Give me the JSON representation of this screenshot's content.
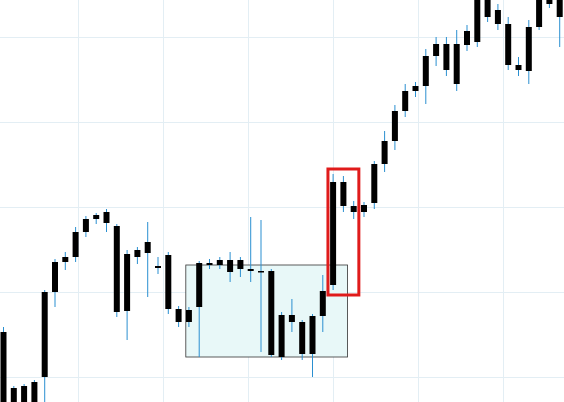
{
  "chart_data": {
    "type": "candlestick",
    "title": "",
    "xlabel": "",
    "ylabel": "",
    "ylim": [
      0,
      402
    ],
    "grid": true,
    "colors": {
      "candle_body": "#000000",
      "wick": "#2a8fd0",
      "grid": "#e3eef4",
      "zone_fill": "#e8f8f8",
      "zone_stroke": "#333333",
      "highlight": "#e01b1b"
    },
    "candles": [
      {
        "x": 1,
        "open": 70,
        "close": 0,
        "high": 75,
        "low": 0
      },
      {
        "x": 2,
        "open": 14,
        "close": 0,
        "high": 16,
        "low": 0
      },
      {
        "x": 3,
        "open": 16,
        "close": 0,
        "high": 18,
        "low": 0
      },
      {
        "x": 4,
        "open": 20,
        "close": 0,
        "high": 22,
        "low": 0
      },
      {
        "x": 5,
        "open": 25,
        "close": 110,
        "high": 112,
        "low": 0
      },
      {
        "x": 6,
        "open": 110,
        "close": 140,
        "high": 143,
        "low": 95
      },
      {
        "x": 7,
        "open": 140,
        "close": 145,
        "high": 150,
        "low": 132
      },
      {
        "x": 8,
        "open": 145,
        "close": 170,
        "high": 175,
        "low": 140
      },
      {
        "x": 9,
        "open": 170,
        "close": 183,
        "high": 186,
        "low": 165
      },
      {
        "x": 10,
        "open": 183,
        "close": 187,
        "high": 189,
        "low": 178
      },
      {
        "x": 11,
        "open": 190,
        "close": 179,
        "high": 193,
        "low": 170
      },
      {
        "x": 12,
        "open": 176,
        "close": 90,
        "high": 178,
        "low": 85
      },
      {
        "x": 13,
        "open": 148,
        "close": 91,
        "high": 152,
        "low": 62
      },
      {
        "x": 14,
        "open": 145,
        "close": 152,
        "high": 155,
        "low": 138
      },
      {
        "x": 15,
        "open": 160,
        "close": 149,
        "high": 180,
        "low": 105
      },
      {
        "x": 16,
        "open": 136,
        "close": 134,
        "high": 145,
        "low": 128
      },
      {
        "x": 17,
        "open": 147,
        "close": 93,
        "high": 150,
        "low": 88
      },
      {
        "x": 18,
        "open": 93,
        "close": 80,
        "high": 96,
        "low": 75
      },
      {
        "x": 19,
        "open": 80,
        "close": 92,
        "high": 95,
        "low": 75
      },
      {
        "x": 20,
        "open": 95,
        "close": 139,
        "high": 141,
        "low": 45
      },
      {
        "x": 21,
        "open": 139,
        "close": 137,
        "high": 143,
        "low": 133
      },
      {
        "x": 22,
        "open": 137,
        "close": 142,
        "high": 145,
        "low": 133
      },
      {
        "x": 23,
        "open": 130,
        "close": 142,
        "high": 150,
        "low": 120
      },
      {
        "x": 24,
        "open": 142,
        "close": 133,
        "high": 145,
        "low": 125
      },
      {
        "x": 25,
        "open": 133,
        "close": 131,
        "high": 185,
        "low": 120
      },
      {
        "x": 26,
        "open": 131,
        "close": 130,
        "high": 182,
        "low": 50
      },
      {
        "x": 27,
        "open": 131,
        "close": 47,
        "high": 133,
        "low": 45
      },
      {
        "x": 28,
        "open": 87,
        "close": 45,
        "high": 90,
        "low": 42
      },
      {
        "x": 29,
        "open": 87,
        "close": 80,
        "high": 103,
        "low": 70
      },
      {
        "x": 30,
        "open": 80,
        "close": 48,
        "high": 82,
        "low": 42
      },
      {
        "x": 31,
        "open": 48,
        "close": 86,
        "high": 88,
        "low": 25
      },
      {
        "x": 32,
        "open": 86,
        "close": 111,
        "high": 127,
        "low": 70
      },
      {
        "x": 33,
        "open": 117,
        "close": 220,
        "high": 228,
        "low": 112
      },
      {
        "x": 34,
        "open": 220,
        "close": 196,
        "high": 226,
        "low": 190
      },
      {
        "x": 35,
        "open": 196,
        "close": 190,
        "high": 201,
        "low": 183
      },
      {
        "x": 36,
        "open": 190,
        "close": 197,
        "high": 200,
        "low": 185
      },
      {
        "x": 37,
        "open": 199,
        "close": 238,
        "high": 241,
        "low": 193
      },
      {
        "x": 38,
        "open": 238,
        "close": 261,
        "high": 271,
        "low": 230
      },
      {
        "x": 39,
        "open": 261,
        "close": 291,
        "high": 297,
        "low": 252
      },
      {
        "x": 40,
        "open": 291,
        "close": 311,
        "high": 318,
        "low": 285
      },
      {
        "x": 41,
        "open": 311,
        "close": 316,
        "high": 320,
        "low": 305
      },
      {
        "x": 42,
        "open": 316,
        "close": 346,
        "high": 353,
        "low": 298
      },
      {
        "x": 43,
        "open": 346,
        "close": 358,
        "high": 365,
        "low": 336
      },
      {
        "x": 44,
        "open": 358,
        "close": 332,
        "high": 365,
        "low": 326
      },
      {
        "x": 45,
        "open": 358,
        "close": 318,
        "high": 372,
        "low": 311
      },
      {
        "x": 46,
        "open": 357,
        "close": 371,
        "high": 377,
        "low": 351
      },
      {
        "x": 47,
        "open": 360,
        "close": 412,
        "high": 412,
        "low": 355
      },
      {
        "x": 48,
        "open": 412,
        "close": 385,
        "high": 412,
        "low": 380
      },
      {
        "x": 49,
        "open": 392,
        "close": 378,
        "high": 398,
        "low": 372
      },
      {
        "x": 50,
        "open": 378,
        "close": 337,
        "high": 385,
        "low": 332
      },
      {
        "x": 51,
        "open": 337,
        "close": 332,
        "high": 345,
        "low": 326
      },
      {
        "x": 52,
        "open": 331,
        "close": 375,
        "high": 382,
        "low": 318
      },
      {
        "x": 53,
        "open": 375,
        "close": 412,
        "high": 412,
        "low": 372
      },
      {
        "x": 54,
        "open": 398,
        "close": 412,
        "high": 412,
        "low": 394
      },
      {
        "x": 55,
        "open": 385,
        "close": 412,
        "high": 412,
        "low": 355
      }
    ],
    "zones": [
      {
        "name": "consolidation-zone",
        "x_start": 18.7,
        "x_end": 34.4,
        "y_low": 45,
        "y_high": 137
      }
    ],
    "highlights": [
      {
        "name": "breakout-candles-highlight",
        "x_start": 32.5,
        "x_end": 35.5,
        "y_low": 107,
        "y_high": 233
      }
    ]
  }
}
